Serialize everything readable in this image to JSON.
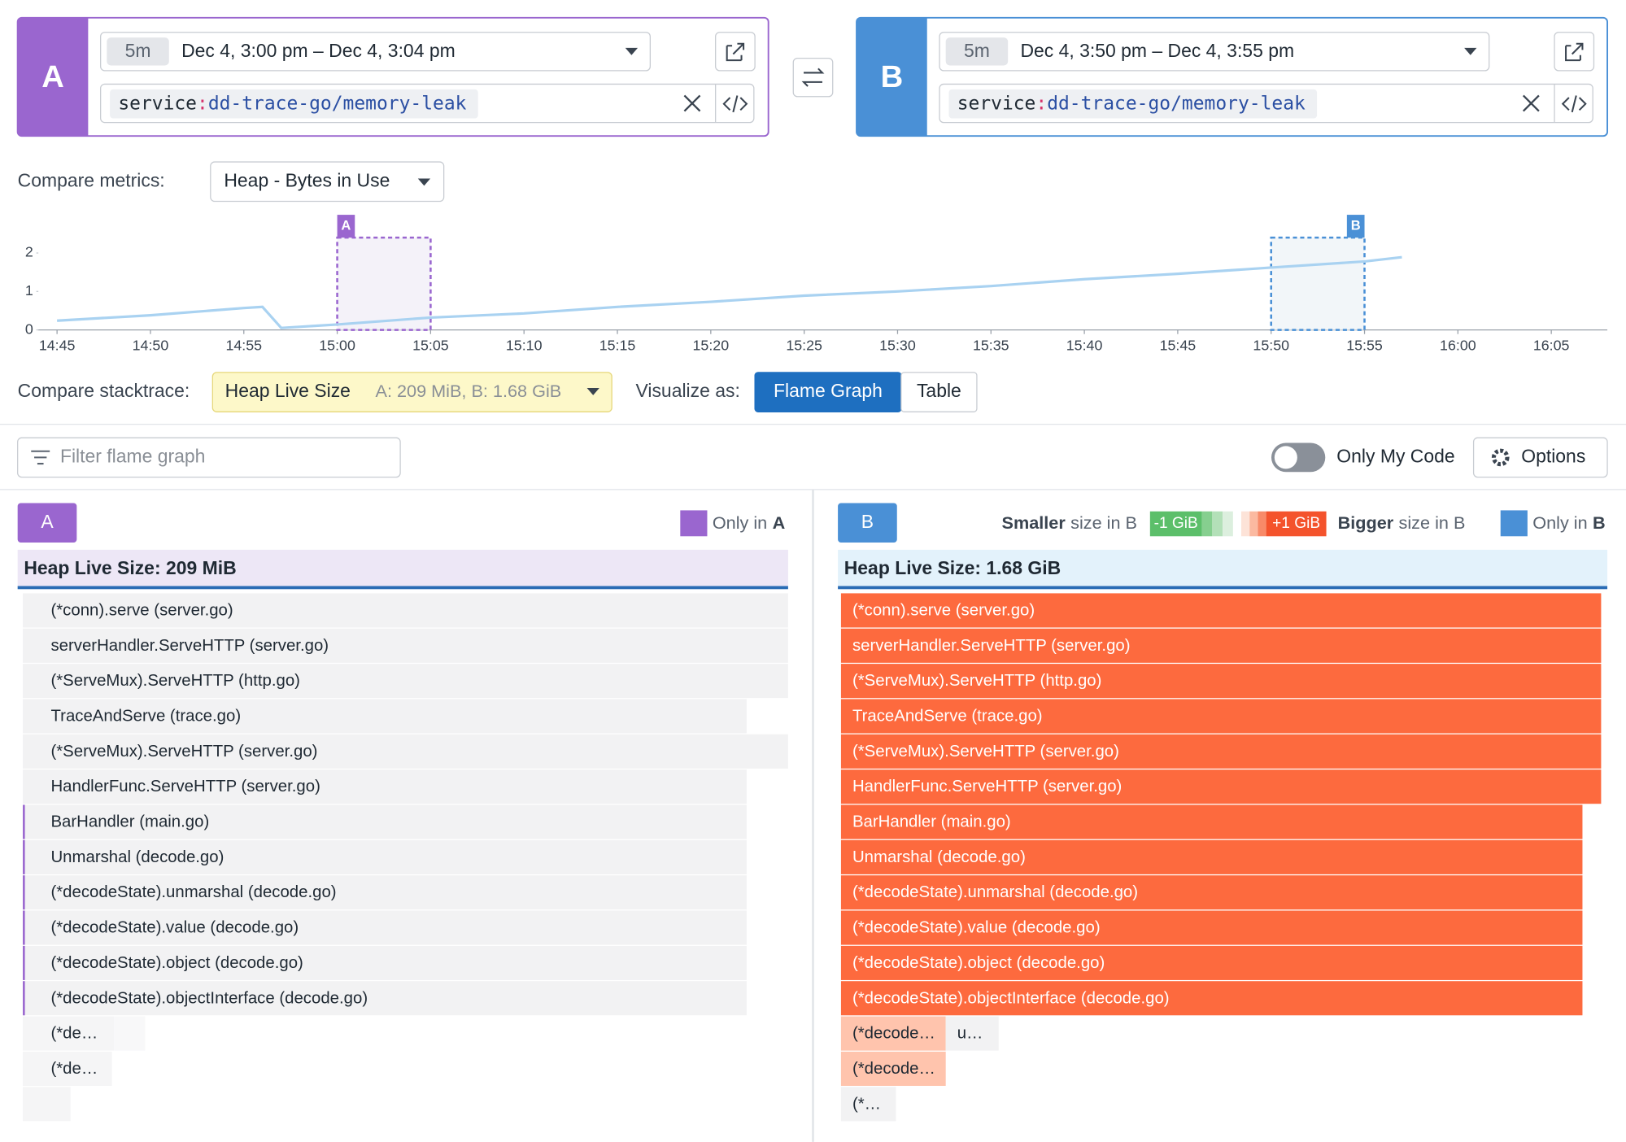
{
  "query_a": {
    "label": "A",
    "duration": "5m",
    "time_range": "Dec 4, 3:00 pm – Dec 4, 3:04 pm",
    "query_key": "service",
    "query_separator": ":",
    "query_value": "dd-trace-go/memory-leak"
  },
  "query_b": {
    "label": "B",
    "duration": "5m",
    "time_range": "Dec 4, 3:50 pm – Dec 4, 3:55 pm",
    "query_key": "service",
    "query_separator": ":",
    "query_value": "dd-trace-go/memory-leak"
  },
  "compare_metrics": {
    "label": "Compare metrics:",
    "selected": "Heap - Bytes in Use"
  },
  "metric_chart": {
    "type": "line",
    "x": [
      "14:45",
      "14:50",
      "14:55",
      "14:56",
      "14:57",
      "15:00",
      "15:05",
      "15:10",
      "15:15",
      "15:20",
      "15:25",
      "15:30",
      "15:35",
      "15:40",
      "15:45",
      "15:50",
      "15:55",
      "15:57"
    ],
    "series": [
      {
        "color": "#a9d2f1",
        "values": [
          0.24,
          0.38,
          0.57,
          0.6,
          0.05,
          0.14,
          0.32,
          0.43,
          0.6,
          0.73,
          0.89,
          1.0,
          1.14,
          1.32,
          1.46,
          1.62,
          1.78,
          1.89
        ]
      }
    ],
    "xlim": [
      "14:44",
      "16:08"
    ],
    "xticks": [
      "14:45",
      "14:50",
      "14:55",
      "15:00",
      "15:05",
      "15:10",
      "15:15",
      "15:20",
      "15:25",
      "15:30",
      "15:35",
      "15:40",
      "15:45",
      "15:50",
      "15:55",
      "16:00",
      "16:05"
    ],
    "ylim": [
      0,
      2.4
    ],
    "yticks": [
      0,
      1,
      2
    ]
  },
  "compare_stacktrace": {
    "label": "Compare stacktrace:",
    "selected": "Heap Live Size",
    "detail": "A: 209 MiB, B: 1.68 GiB"
  },
  "visualize": {
    "label": "Visualize as:",
    "options": [
      "Flame Graph",
      "Table"
    ],
    "selected": 0
  },
  "filter": {
    "placeholder": "Filter flame graph"
  },
  "only_my_code": {
    "label": "Only My Code",
    "enabled": false
  },
  "options_button": {
    "label": "Options"
  },
  "panel_a": {
    "label": "A",
    "legend_text": "Only in",
    "legend_letter": "A",
    "header": "Heap Live Size: 209 MiB",
    "frames": [
      [
        "(*conn).serve (server.go)"
      ],
      [
        "serverHandler.ServeHTTP (server.go)"
      ],
      [
        "(*ServeMux).ServeHTTP (http.go)"
      ],
      [
        "TraceAndServe (trace.go)"
      ],
      [
        "(*ServeMux).ServeHTTP (server.go)"
      ],
      [
        "HandlerFunc.ServeHTTP (server.go)"
      ],
      [
        "BarHandler (main.go)"
      ],
      [
        "Unmarshal (decode.go)"
      ],
      [
        "(*decodeState).unmarshal (decode.go)"
      ],
      [
        "(*decodeState).value (decode.go)"
      ],
      [
        "(*decodeState).object (decode.go)"
      ],
      [
        "(*decodeState).objectInterface (decode.go)"
      ],
      [
        "(*de…"
      ],
      [
        "(*de…"
      ]
    ]
  },
  "panel_b": {
    "label": "B",
    "legend_smaller_bold": "Smaller",
    "legend_smaller_rest": "size in B",
    "scale_low": "-1 GiB",
    "scale_high": "+1 GiB",
    "legend_bigger_bold": "Bigger",
    "legend_bigger_rest": "size in B",
    "legend_text": "Only in",
    "legend_letter": "B",
    "header": "Heap Live Size: 1.68 GiB",
    "frames": [
      [
        "(*conn).serve (server.go)"
      ],
      [
        "serverHandler.ServeHTTP (server.go)"
      ],
      [
        "(*ServeMux).ServeHTTP (http.go)"
      ],
      [
        "TraceAndServe (trace.go)"
      ],
      [
        "(*ServeMux).ServeHTTP (server.go)"
      ],
      [
        "HandlerFunc.ServeHTTP (server.go)"
      ],
      [
        "BarHandler (main.go)"
      ],
      [
        "Unmarshal (decode.go)"
      ],
      [
        "(*decodeState).unmarshal (decode.go)"
      ],
      [
        "(*decodeState).value (decode.go)"
      ],
      [
        "(*decodeState).object (decode.go)"
      ],
      [
        "(*decodeState).objectInterface (decode.go)"
      ],
      [
        "(*decode…",
        "u…"
      ],
      [
        "(*decode…"
      ],
      [
        "(*…"
      ]
    ]
  }
}
